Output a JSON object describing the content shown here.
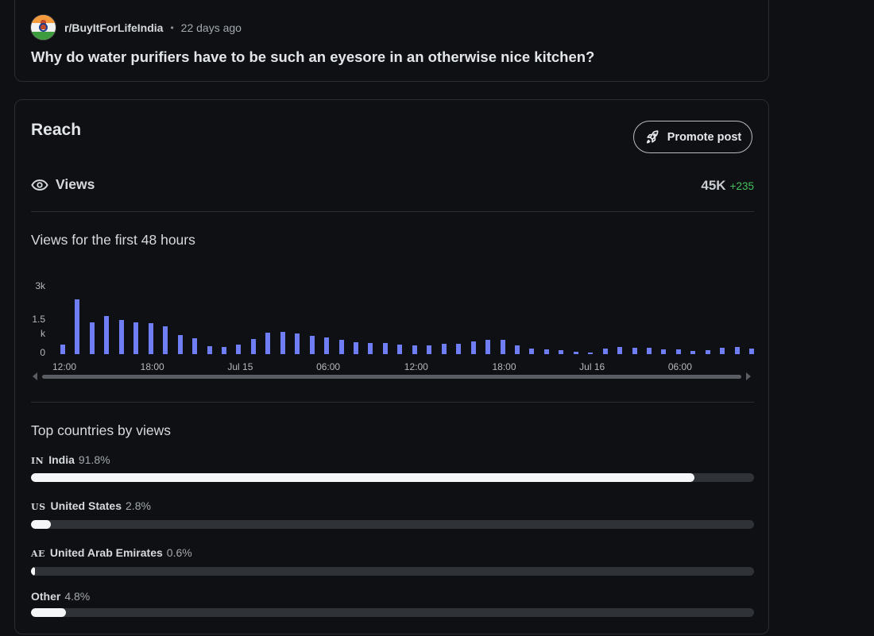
{
  "post": {
    "subreddit": "r/BuyItForLifeIndia",
    "separator": "•",
    "time_ago": "22 days ago",
    "title": "Why do water purifiers have to be such an eyesore in an otherwise nice kitchen?",
    "avatar_icon": "india-flag-avatar-icon"
  },
  "reach": {
    "title": "Reach",
    "promote_label": "Promote post",
    "promote_icon": "rocket-icon",
    "views_label": "Views",
    "views_icon": "eye-icon",
    "views_total": "45K",
    "views_delta": "+235",
    "delta_color": "#46c15b"
  },
  "chart_section": {
    "title": "Views for the first 48 hours"
  },
  "chart_data": {
    "type": "bar",
    "title": "Views for the first 48 hours",
    "bar_color": "#6f7ef5",
    "y_ticks": [
      "3k",
      "1.5\nk",
      "0"
    ],
    "y_tick_values": [
      3000,
      1500,
      0
    ],
    "ylim": [
      0,
      3000
    ],
    "x_ticks": [
      "12:00",
      "18:00",
      "Jul 15",
      "06:00",
      "12:00",
      "18:00",
      "Jul 16",
      "06:00"
    ],
    "x_tick_hour_index": [
      0,
      6,
      12,
      18,
      24,
      30,
      36,
      42
    ],
    "categories": [
      "h0",
      "h1",
      "h2",
      "h3",
      "h4",
      "h5",
      "h6",
      "h7",
      "h8",
      "h9",
      "h10",
      "h11",
      "h12",
      "h13",
      "h14",
      "h15",
      "h16",
      "h17",
      "h18",
      "h19",
      "h20",
      "h21",
      "h22",
      "h23",
      "h24",
      "h25",
      "h26",
      "h27",
      "h28",
      "h29",
      "h30",
      "h31",
      "h32",
      "h33",
      "h34",
      "h35",
      "h36",
      "h37",
      "h38",
      "h39",
      "h40",
      "h41",
      "h42",
      "h43",
      "h44",
      "h45",
      "h46",
      "h47"
    ],
    "values": [
      420,
      2450,
      1420,
      1700,
      1520,
      1420,
      1380,
      1250,
      850,
      700,
      350,
      320,
      430,
      670,
      950,
      1000,
      920,
      830,
      760,
      630,
      520,
      510,
      490,
      440,
      380,
      410,
      450,
      470,
      560,
      650,
      640,
      400,
      250,
      200,
      180,
      90,
      80,
      240,
      310,
      290,
      270,
      230,
      220,
      160,
      170,
      300,
      310,
      260
    ],
    "grid": false,
    "legend": "none"
  },
  "countries": {
    "title": "Top countries by views",
    "items": [
      {
        "code": "IN",
        "name": "India",
        "pct_label": "91.8%",
        "fraction": 0.918
      },
      {
        "code": "US",
        "name": "United States",
        "pct_label": "2.8%",
        "fraction": 0.028
      },
      {
        "code": "AE",
        "name": "United Arab Emirates",
        "pct_label": "0.6%",
        "fraction": 0.006
      },
      {
        "code": "",
        "name": "Other",
        "pct_label": "4.8%",
        "fraction": 0.048
      }
    ]
  }
}
